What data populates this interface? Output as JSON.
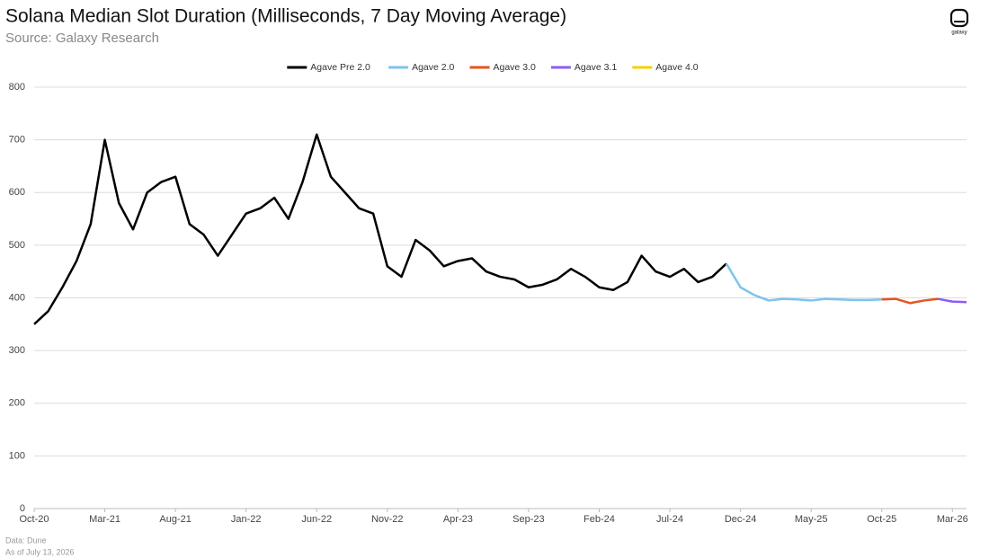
{
  "chart_data": {
    "type": "line",
    "title": "Solana Median Slot Duration (Milliseconds, 7 Day Moving Average)",
    "subtitle": "Source: Galaxy Research",
    "logo": "galaxy",
    "footnotes": [
      "Data: Dune",
      "As of July 13, 2026"
    ],
    "x": [
      "2020-10",
      "2020-11",
      "2020-12",
      "2021-01",
      "2021-02",
      "2021-03",
      "2021-04",
      "2021-05",
      "2021-06",
      "2021-07",
      "2021-08",
      "2021-09",
      "2021-10",
      "2021-11",
      "2021-12",
      "2022-01",
      "2022-02",
      "2022-03",
      "2022-04",
      "2022-05",
      "2022-06",
      "2022-07",
      "2022-08",
      "2022-09",
      "2022-10",
      "2022-11",
      "2022-12",
      "2023-01",
      "2023-02",
      "2023-03",
      "2023-04",
      "2023-05",
      "2023-06",
      "2023-07",
      "2023-08",
      "2023-09",
      "2023-10",
      "2023-11",
      "2023-12",
      "2024-01",
      "2024-02",
      "2024-03",
      "2024-04",
      "2024-05",
      "2024-06",
      "2024-07",
      "2024-08",
      "2024-09",
      "2024-10",
      "2024-11",
      "2024-12",
      "2025-01",
      "2025-02",
      "2025-03",
      "2025-04",
      "2025-05",
      "2025-06",
      "2025-07",
      "2025-08",
      "2025-09",
      "2025-10",
      "2025-11",
      "2025-12",
      "2026-01",
      "2026-02",
      "2026-03",
      "2026-04"
    ],
    "series": [
      {
        "name": "Agave Pre 2.0",
        "color": "#000000",
        "values": [
          350,
          375,
          420,
          470,
          540,
          700,
          580,
          530,
          600,
          620,
          630,
          540,
          520,
          480,
          520,
          560,
          570,
          590,
          550,
          620,
          710,
          630,
          600,
          570,
          560,
          460,
          440,
          510,
          490,
          460,
          470,
          475,
          450,
          440,
          435,
          420,
          425,
          435,
          455,
          440,
          420,
          415,
          430,
          480,
          450,
          440,
          455,
          430,
          440,
          465,
          null,
          null,
          null,
          null,
          null,
          null,
          null,
          null,
          null,
          null,
          null,
          null,
          null,
          null,
          null,
          null,
          null
        ]
      },
      {
        "name": "Agave 2.0",
        "color": "#7cc4ec",
        "values": [
          null,
          null,
          null,
          null,
          null,
          null,
          null,
          null,
          null,
          null,
          null,
          null,
          null,
          null,
          null,
          null,
          null,
          null,
          null,
          null,
          null,
          null,
          null,
          null,
          null,
          null,
          null,
          null,
          null,
          null,
          null,
          null,
          null,
          null,
          null,
          null,
          null,
          null,
          null,
          null,
          null,
          null,
          null,
          null,
          null,
          null,
          null,
          null,
          null,
          465,
          420,
          405,
          395,
          398,
          397,
          395,
          398,
          397,
          396,
          396,
          397,
          null,
          null,
          null,
          null,
          null,
          null
        ]
      },
      {
        "name": "Agave 3.0",
        "color": "#e8541e",
        "values": [
          null,
          null,
          null,
          null,
          null,
          null,
          null,
          null,
          null,
          null,
          null,
          null,
          null,
          null,
          null,
          null,
          null,
          null,
          null,
          null,
          null,
          null,
          null,
          null,
          null,
          null,
          null,
          null,
          null,
          null,
          null,
          null,
          null,
          null,
          null,
          null,
          null,
          null,
          null,
          null,
          null,
          null,
          null,
          null,
          null,
          null,
          null,
          null,
          null,
          null,
          null,
          null,
          null,
          null,
          null,
          null,
          null,
          null,
          null,
          null,
          397,
          398,
          390,
          395,
          398,
          null,
          null
        ]
      },
      {
        "name": "Agave 3.1",
        "color": "#8b5cf6",
        "values": [
          null,
          null,
          null,
          null,
          null,
          null,
          null,
          null,
          null,
          null,
          null,
          null,
          null,
          null,
          null,
          null,
          null,
          null,
          null,
          null,
          null,
          null,
          null,
          null,
          null,
          null,
          null,
          null,
          null,
          null,
          null,
          null,
          null,
          null,
          null,
          null,
          null,
          null,
          null,
          null,
          null,
          null,
          null,
          null,
          null,
          null,
          null,
          null,
          null,
          null,
          null,
          null,
          null,
          null,
          null,
          null,
          null,
          null,
          null,
          null,
          null,
          null,
          null,
          null,
          398,
          393,
          392
        ]
      },
      {
        "name": "Agave 4.0",
        "color": "#f5d000",
        "values": [
          null,
          null,
          null,
          null,
          null,
          null,
          null,
          null,
          null,
          null,
          null,
          null,
          null,
          null,
          null,
          null,
          null,
          null,
          null,
          null,
          null,
          null,
          null,
          null,
          null,
          null,
          null,
          null,
          null,
          null,
          null,
          null,
          null,
          null,
          null,
          null,
          null,
          null,
          null,
          null,
          null,
          null,
          null,
          null,
          null,
          null,
          null,
          null,
          null,
          null,
          null,
          null,
          null,
          null,
          null,
          null,
          null,
          null,
          null,
          null,
          null,
          null,
          null,
          null,
          null,
          null,
          null
        ]
      }
    ],
    "xlim": [
      "2020-10",
      "2026-04"
    ],
    "xticks": [
      {
        "value": "2020-10",
        "label": "Oct-20"
      },
      {
        "value": "2021-03",
        "label": "Mar-21"
      },
      {
        "value": "2021-08",
        "label": "Aug-21"
      },
      {
        "value": "2022-01",
        "label": "Jan-22"
      },
      {
        "value": "2022-06",
        "label": "Jun-22"
      },
      {
        "value": "2022-11",
        "label": "Nov-22"
      },
      {
        "value": "2023-04",
        "label": "Apr-23"
      },
      {
        "value": "2023-09",
        "label": "Sep-23"
      },
      {
        "value": "2024-02",
        "label": "Feb-24"
      },
      {
        "value": "2024-07",
        "label": "Jul-24"
      },
      {
        "value": "2024-12",
        "label": "Dec-24"
      },
      {
        "value": "2025-05",
        "label": "May-25"
      },
      {
        "value": "2025-10",
        "label": "Oct-25"
      },
      {
        "value": "2026-03",
        "label": "Mar-26"
      }
    ],
    "ylim": [
      0,
      800
    ],
    "yticks": [
      0,
      100,
      200,
      300,
      400,
      500,
      600,
      700,
      800
    ],
    "grid": true,
    "legend": "top"
  }
}
